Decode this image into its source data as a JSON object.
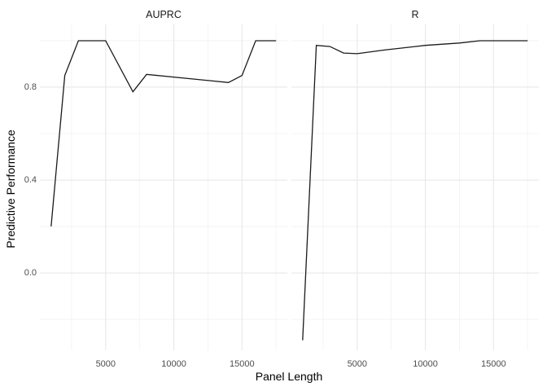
{
  "figure": {
    "background": "#FFFFFF",
    "line_color": "#1A1A1A",
    "grid_major_color": "#E8E8E8",
    "grid_minor_color": "#F2F2F2",
    "tick_label_color": "#4D4D4D",
    "axis_title_color": "#000000",
    "strip_text_color": "#1A1A1A"
  },
  "chart_data": {
    "type": "line",
    "title": "",
    "xlabel": "Panel Length",
    "ylabel": "Predictive Performance",
    "legend": "none",
    "grid": true,
    "x_range": [
      175,
      18325
    ],
    "y_range": [
      -0.333,
      1.07
    ],
    "x_major_ticks": [
      5000,
      10000,
      15000
    ],
    "x_minor_ticks": [
      2500,
      7500,
      12500,
      17500
    ],
    "x_tick_labels": [
      "5000",
      "10000",
      "15000"
    ],
    "y_major_ticks": [
      0.0,
      0.4,
      0.8
    ],
    "y_minor_ticks": [
      -0.2,
      0.2,
      0.6,
      1.0
    ],
    "y_tick_labels": [
      "0.0",
      "0.4",
      "0.8"
    ],
    "facets": [
      {
        "title": "AUPRC",
        "points": [
          [
            1000,
            0.2
          ],
          [
            2000,
            0.85
          ],
          [
            3000,
            1.0
          ],
          [
            5000,
            1.0
          ],
          [
            7000,
            0.78
          ],
          [
            8000,
            0.855
          ],
          [
            14000,
            0.82
          ],
          [
            15000,
            0.85
          ],
          [
            16000,
            1.0
          ],
          [
            17500,
            1.0
          ]
        ]
      },
      {
        "title": "R",
        "points": [
          [
            1000,
            -0.29
          ],
          [
            2000,
            0.98
          ],
          [
            3000,
            0.975
          ],
          [
            4000,
            0.947
          ],
          [
            5000,
            0.944
          ],
          [
            7000,
            0.96
          ],
          [
            10000,
            0.98
          ],
          [
            12500,
            0.99
          ],
          [
            14000,
            1.0
          ],
          [
            15000,
            1.0
          ],
          [
            16000,
            1.0
          ],
          [
            17500,
            1.0
          ]
        ]
      }
    ]
  }
}
